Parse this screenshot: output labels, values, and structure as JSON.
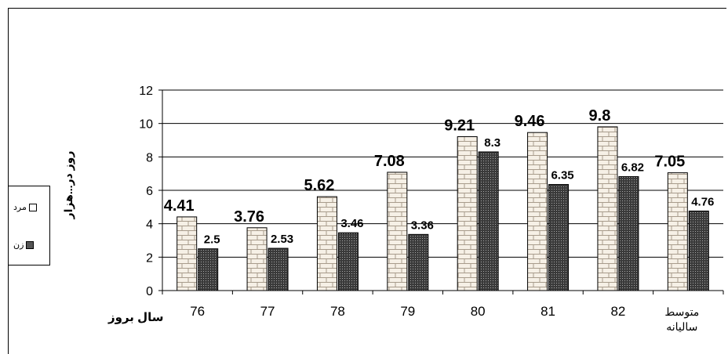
{
  "chart_data": {
    "type": "bar",
    "categories": [
      "76",
      "77",
      "78",
      "79",
      "80",
      "81",
      "82",
      "متوسط سالیانه"
    ],
    "series": [
      {
        "name": "مرد",
        "values": [
          4.41,
          3.76,
          5.62,
          7.08,
          9.21,
          9.46,
          9.8,
          7.05
        ],
        "labels": [
          "4.41",
          "3.76",
          "5.62",
          "7.08",
          "9.21",
          "9.46",
          "9.8",
          "7.05"
        ]
      },
      {
        "name": "زن",
        "values": [
          2.5,
          2.53,
          3.46,
          3.36,
          8.3,
          6.35,
          6.82,
          4.76
        ],
        "labels": [
          "2.5",
          "2.53",
          "3.46",
          "3.36",
          "8.3",
          "6.35",
          "6.82",
          "4.76"
        ]
      }
    ],
    "xlabel": "سال بروز",
    "ylabel": "روز در...هزار",
    "ylim": [
      0,
      12
    ],
    "yticks": [
      "0",
      "2",
      "4",
      "6",
      "8",
      "10",
      "12"
    ],
    "grid": true,
    "legend_position": "left"
  }
}
